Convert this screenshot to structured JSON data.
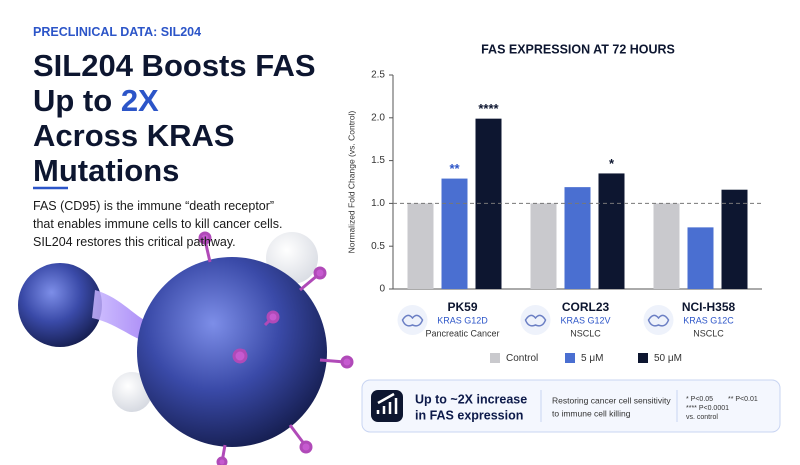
{
  "eyebrow": "PRECLINICAL DATA: SIL204",
  "headline": {
    "line1": "SIL204 Boosts FAS",
    "line2_prefix": "Up to ",
    "line2_highlight": "2X",
    "line3": "Across KRAS",
    "line4": "Mutations"
  },
  "body": "FAS (CD95) is the immune “death receptor” that enables immune cells to kill cancer cells. SIL204 restores this critical pathway.",
  "chart_data": {
    "type": "bar",
    "title": "FAS EXPRESSION AT 72 HOURS",
    "y_label": "Normalized Fold Change (vs. Control)",
    "categories": [
      "PK59",
      "CORL23",
      "NCI-H358"
    ],
    "category_details": [
      {
        "mutation": "KRAS G12D",
        "cancer": "Pancreatic Cancer"
      },
      {
        "mutation": "KRAS G12V",
        "cancer": "NSCLC"
      },
      {
        "mutation": "KRAS G12C",
        "cancer": "NSCLC"
      }
    ],
    "series": [
      {
        "name": "Control",
        "color": "#c9c9cd",
        "values": [
          1.0,
          1.0,
          1.0
        ],
        "significance": [
          null,
          null,
          null
        ]
      },
      {
        "name": "5 μM",
        "color": "#4a6fd1",
        "values": [
          1.29,
          1.19,
          0.72
        ],
        "significance": [
          "**",
          null,
          null
        ]
      },
      {
        "name": "50 μM",
        "color": "#0d1630",
        "values": [
          1.99,
          1.35,
          1.16
        ],
        "significance": [
          "****",
          "*",
          null
        ]
      }
    ],
    "ylim": [
      0,
      2.5
    ],
    "yticks": [
      0,
      0.5,
      {
        "value": 1,
        "label": "1.0"
      },
      1.5,
      {
        "value": 2,
        "label": "2.0"
      },
      2.5
    ],
    "reference_line": 1,
    "legend": "bottom",
    "grid": false
  },
  "callout": {
    "headline": [
      "Up to ~2X increase",
      "in FAS expression"
    ],
    "text": [
      "Restoring cancer cell sensitivity",
      "to immune cell killing"
    ],
    "footnotes": [
      "* P<0.05",
      "** P<0.01",
      "**** P<0.0001",
      "vs. control"
    ]
  }
}
